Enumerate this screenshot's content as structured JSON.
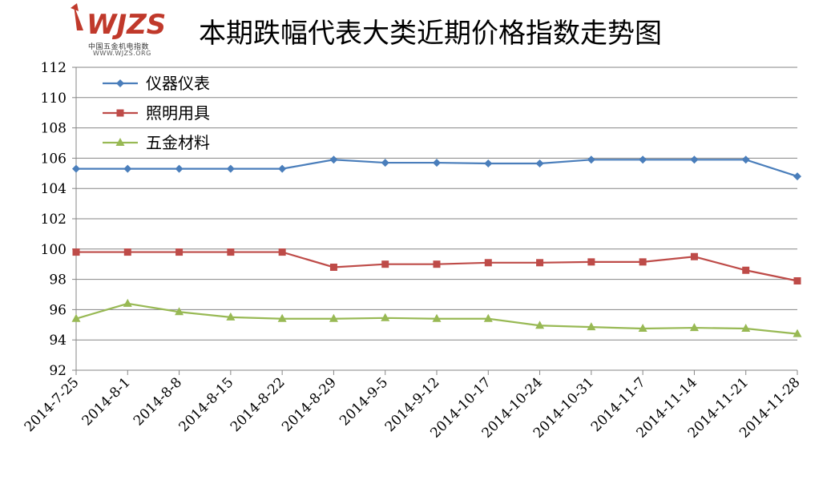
{
  "logo": {
    "mark_text": "WJZS",
    "subtitle": "中国五金机电指数",
    "url": "WWW.WJZS.ORG",
    "colors": {
      "mark": "#c0392b"
    }
  },
  "chart_data": {
    "type": "line",
    "title": "本期跌幅代表大类近期价格指数走势图",
    "xlabel": "",
    "ylabel": "",
    "categories": [
      "2014-7-25",
      "2014-8-1",
      "2014-8-8",
      "2014-8-15",
      "2014-8-22",
      "2014-8-29",
      "2014-9-5",
      "2014-9-12",
      "2014-10-17",
      "2014-10-24",
      "2014-10-31",
      "2014-11-7",
      "2014-11-14",
      "2014-11-21",
      "2014-11-28"
    ],
    "ylim": [
      92,
      112
    ],
    "yticks": [
      "92",
      "94",
      "96",
      "98",
      "100",
      "102",
      "104",
      "106",
      "108",
      "110",
      "112"
    ],
    "grid": true,
    "legend_position": "top-left",
    "series": [
      {
        "name": "仪器仪表",
        "color": "#4a7ebb",
        "marker": "diamond",
        "values": [
          105.3,
          105.3,
          105.3,
          105.3,
          105.3,
          105.9,
          105.7,
          105.7,
          105.65,
          105.65,
          105.9,
          105.9,
          105.9,
          105.9,
          104.8
        ]
      },
      {
        "name": "照明用具",
        "color": "#be4b48",
        "marker": "square",
        "values": [
          99.8,
          99.8,
          99.8,
          99.8,
          99.8,
          98.8,
          99.0,
          99.0,
          99.1,
          99.1,
          99.15,
          99.15,
          99.5,
          98.6,
          97.9
        ]
      },
      {
        "name": "五金材料",
        "color": "#98b954",
        "marker": "triangle",
        "values": [
          95.4,
          96.4,
          95.85,
          95.5,
          95.4,
          95.4,
          95.45,
          95.4,
          95.4,
          94.95,
          94.85,
          94.75,
          94.8,
          94.75,
          94.4
        ]
      }
    ]
  }
}
